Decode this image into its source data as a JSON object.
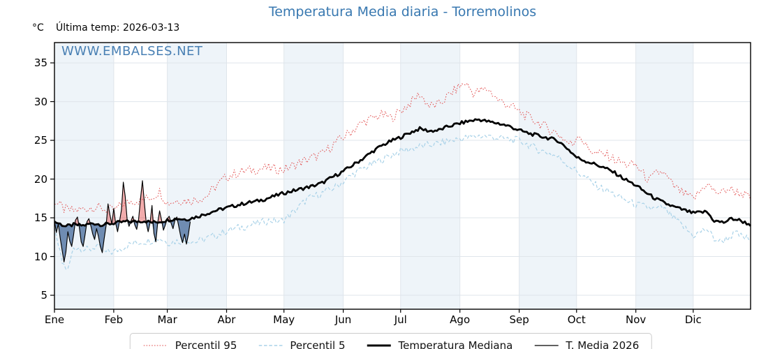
{
  "title": {
    "text": "Temperatura Media diaria - Torremolinos",
    "color": "#3878b0"
  },
  "header": {
    "unit_label": "°C",
    "last_temp_label": "Última temp: 2026-03-13"
  },
  "watermark": {
    "text": "WWW.EMBALSES.NET",
    "color": "#3a76ae"
  },
  "chart_data": {
    "type": "line",
    "x_axis": "days of year (daily temperature, °C)",
    "ylabel": "°C",
    "ylim": [
      3.2,
      37.62
    ],
    "y_ticks": [
      5,
      10,
      15,
      20,
      25,
      30,
      35
    ],
    "months": [
      {
        "label": "Ene",
        "days": 31
      },
      {
        "label": "Feb",
        "days": 28
      },
      {
        "label": "Mar",
        "days": 31
      },
      {
        "label": "Abr",
        "days": 30
      },
      {
        "label": "May",
        "days": 31
      },
      {
        "label": "Jun",
        "days": 30
      },
      {
        "label": "Jul",
        "days": 31
      },
      {
        "label": "Ago",
        "days": 31
      },
      {
        "label": "Sep",
        "days": 30
      },
      {
        "label": "Oct",
        "days": 31
      },
      {
        "label": "Nov",
        "days": 30
      },
      {
        "label": "Dic",
        "days": 31
      }
    ],
    "colors": {
      "band": "#eef4f9",
      "grid": "#dfe5eb",
      "spine": "#000000",
      "fill_above_median": "rgba(225,70,70,0.45)",
      "fill_below_median": "rgba(62,100,150,0.72)"
    },
    "legend_position": "bottom-center",
    "series": [
      {
        "name": "Percentil 95",
        "type": "anchors",
        "color": "#e14b4b",
        "dash": "1.6 2.2",
        "width": 1.0,
        "noise": 0.65,
        "seed": 7,
        "anchors": [
          [
            0,
            17.2
          ],
          [
            5,
            16.1
          ],
          [
            10,
            15.9
          ],
          [
            15,
            16.1
          ],
          [
            20,
            16.4
          ],
          [
            25,
            16.2
          ],
          [
            31,
            15.9
          ],
          [
            36,
            16.8
          ],
          [
            41,
            17.2
          ],
          [
            46,
            17.3
          ],
          [
            51,
            17.7
          ],
          [
            55,
            18.4
          ],
          [
            59,
            16.9
          ],
          [
            65,
            17.3
          ],
          [
            71,
            17.2
          ],
          [
            79,
            17.7
          ],
          [
            85,
            19.2
          ],
          [
            90,
            20.3
          ],
          [
            97,
            20.9
          ],
          [
            104,
            21.2
          ],
          [
            110,
            21.4
          ],
          [
            116,
            21.3
          ],
          [
            120,
            21.2
          ],
          [
            127,
            22.0
          ],
          [
            134,
            22.7
          ],
          [
            140,
            23.2
          ],
          [
            146,
            24.5
          ],
          [
            151,
            25.4
          ],
          [
            157,
            26.5
          ],
          [
            161,
            27.3
          ],
          [
            167,
            27.9
          ],
          [
            171,
            28.3
          ],
          [
            176,
            27.9
          ],
          [
            181,
            28.8
          ],
          [
            186,
            29.8
          ],
          [
            191,
            31.0
          ],
          [
            196,
            29.4
          ],
          [
            201,
            29.6
          ],
          [
            207,
            31.0
          ],
          [
            212,
            32.0
          ],
          [
            215,
            32.4
          ],
          [
            219,
            31.1
          ],
          [
            223,
            31.4
          ],
          [
            227,
            31.6
          ],
          [
            232,
            30.2
          ],
          [
            238,
            29.5
          ],
          [
            243,
            28.7
          ],
          [
            249,
            27.8
          ],
          [
            253,
            27.3
          ],
          [
            259,
            26.4
          ],
          [
            263,
            25.9
          ],
          [
            268,
            24.8
          ],
          [
            271,
            24.4
          ],
          [
            274,
            26.0
          ],
          [
            278,
            24.2
          ],
          [
            283,
            23.3
          ],
          [
            289,
            23.1
          ],
          [
            293,
            22.5
          ],
          [
            299,
            21.9
          ],
          [
            304,
            21.8
          ],
          [
            308,
            20.6
          ],
          [
            311,
            19.8
          ],
          [
            315,
            20.8
          ],
          [
            318,
            20.9
          ],
          [
            324,
            19.0
          ],
          [
            329,
            18.1
          ],
          [
            334,
            17.4
          ],
          [
            338,
            18.5
          ],
          [
            341,
            19.5
          ],
          [
            345,
            18.4
          ],
          [
            349,
            18.2
          ],
          [
            352,
            18.8
          ],
          [
            356,
            18.4
          ],
          [
            360,
            18.1
          ],
          [
            364,
            17.4
          ]
        ]
      },
      {
        "name": "Percentil 5",
        "type": "anchors",
        "color": "#a9d2e8",
        "dash": "4.5 2.8",
        "width": 1.2,
        "noise": 0.5,
        "seed": 13,
        "anchors": [
          [
            0,
            13.2
          ],
          [
            2,
            11.5
          ],
          [
            4,
            9.2
          ],
          [
            7,
            8.2
          ],
          [
            10,
            11.2
          ],
          [
            14,
            11.1
          ],
          [
            18,
            10.8
          ],
          [
            22,
            11.4
          ],
          [
            26,
            10.5
          ],
          [
            31,
            10.6
          ],
          [
            36,
            11.2
          ],
          [
            41,
            11.7
          ],
          [
            46,
            11.9
          ],
          [
            51,
            12.1
          ],
          [
            55,
            12.4
          ],
          [
            59,
            11.8
          ],
          [
            64,
            12.0
          ],
          [
            69,
            12.1
          ],
          [
            74,
            11.9
          ],
          [
            79,
            12.3
          ],
          [
            85,
            12.8
          ],
          [
            90,
            13.3
          ],
          [
            96,
            13.7
          ],
          [
            102,
            14.0
          ],
          [
            108,
            14.4
          ],
          [
            113,
            14.7
          ],
          [
            118,
            14.5
          ],
          [
            122,
            15.1
          ],
          [
            127,
            16.2
          ],
          [
            132,
            17.4
          ],
          [
            137,
            17.9
          ],
          [
            142,
            18.4
          ],
          [
            147,
            19.0
          ],
          [
            151,
            19.7
          ],
          [
            156,
            20.6
          ],
          [
            161,
            21.3
          ],
          [
            166,
            21.9
          ],
          [
            171,
            22.5
          ],
          [
            176,
            23.1
          ],
          [
            181,
            23.6
          ],
          [
            186,
            23.9
          ],
          [
            191,
            24.2
          ],
          [
            196,
            24.4
          ],
          [
            201,
            24.6
          ],
          [
            206,
            24.9
          ],
          [
            212,
            25.2
          ],
          [
            217,
            25.4
          ],
          [
            222,
            25.6
          ],
          [
            227,
            25.5
          ],
          [
            232,
            25.3
          ],
          [
            238,
            25.1
          ],
          [
            243,
            25.0
          ],
          [
            248,
            24.4
          ],
          [
            253,
            23.8
          ],
          [
            258,
            23.4
          ],
          [
            263,
            22.9
          ],
          [
            268,
            22.0
          ],
          [
            273,
            21.0
          ],
          [
            278,
            20.1
          ],
          [
            283,
            19.2
          ],
          [
            288,
            18.6
          ],
          [
            293,
            18.0
          ],
          [
            298,
            17.3
          ],
          [
            304,
            16.7
          ],
          [
            309,
            16.4
          ],
          [
            314,
            16.1
          ],
          [
            318,
            16.3
          ],
          [
            324,
            14.9
          ],
          [
            329,
            13.8
          ],
          [
            334,
            12.7
          ],
          [
            338,
            13.2
          ],
          [
            341,
            13.6
          ],
          [
            345,
            12.3
          ],
          [
            348,
            11.9
          ],
          [
            352,
            12.4
          ],
          [
            356,
            13.0
          ],
          [
            360,
            12.5
          ],
          [
            364,
            12.2
          ]
        ]
      },
      {
        "name": "Temperatura Mediana",
        "type": "anchors",
        "color": "#000000",
        "dash": "",
        "width": 2.8,
        "noise": 0.22,
        "seed": 3,
        "is_median": true,
        "anchors": [
          [
            0,
            14.5
          ],
          [
            6,
            13.9
          ],
          [
            10,
            14.1
          ],
          [
            15,
            14.0
          ],
          [
            20,
            14.3
          ],
          [
            25,
            14.1
          ],
          [
            31,
            14.3
          ],
          [
            37,
            14.5
          ],
          [
            41,
            14.5
          ],
          [
            47,
            14.6
          ],
          [
            51,
            14.4
          ],
          [
            55,
            14.5
          ],
          [
            59,
            14.7
          ],
          [
            64,
            14.9
          ],
          [
            69,
            14.8
          ],
          [
            74,
            15.1
          ],
          [
            79,
            15.5
          ],
          [
            84,
            15.9
          ],
          [
            90,
            16.3
          ],
          [
            95,
            16.6
          ],
          [
            100,
            16.9
          ],
          [
            105,
            17.1
          ],
          [
            110,
            17.4
          ],
          [
            115,
            17.8
          ],
          [
            120,
            18.2
          ],
          [
            125,
            18.5
          ],
          [
            130,
            18.8
          ],
          [
            135,
            19.1
          ],
          [
            140,
            19.5
          ],
          [
            145,
            20.2
          ],
          [
            151,
            21.0
          ],
          [
            156,
            21.8
          ],
          [
            161,
            22.6
          ],
          [
            166,
            23.5
          ],
          [
            171,
            24.3
          ],
          [
            176,
            24.9
          ],
          [
            181,
            25.4
          ],
          [
            186,
            26.0
          ],
          [
            191,
            26.5
          ],
          [
            196,
            26.2
          ],
          [
            201,
            26.3
          ],
          [
            206,
            26.8
          ],
          [
            212,
            27.2
          ],
          [
            217,
            27.5
          ],
          [
            222,
            27.7
          ],
          [
            227,
            27.4
          ],
          [
            232,
            27.2
          ],
          [
            238,
            26.8
          ],
          [
            243,
            26.3
          ],
          [
            248,
            25.9
          ],
          [
            253,
            25.6
          ],
          [
            258,
            25.3
          ],
          [
            263,
            25.0
          ],
          [
            268,
            24.0
          ],
          [
            273,
            22.8
          ],
          [
            278,
            22.3
          ],
          [
            283,
            21.9
          ],
          [
            288,
            21.4
          ],
          [
            293,
            20.8
          ],
          [
            298,
            20.0
          ],
          [
            304,
            19.2
          ],
          [
            309,
            18.3
          ],
          [
            314,
            17.5
          ],
          [
            319,
            16.9
          ],
          [
            324,
            16.4
          ],
          [
            329,
            16.0
          ],
          [
            334,
            15.6
          ],
          [
            338,
            15.7
          ],
          [
            341,
            15.8
          ],
          [
            345,
            14.6
          ],
          [
            350,
            14.4
          ],
          [
            354,
            14.9
          ],
          [
            358,
            14.7
          ],
          [
            361,
            14.4
          ],
          [
            364,
            14.1
          ]
        ]
      },
      {
        "name": "T. Media 2026",
        "type": "daily",
        "color": "#000000",
        "dash": "",
        "width": 1.15,
        "start_day": 0,
        "last_date": "2026-03-13",
        "values": [
          14.6,
          13.1,
          14.2,
          12.4,
          10.8,
          9.3,
          10.6,
          13.2,
          12.0,
          11.3,
          12.8,
          14.7,
          15.1,
          13.8,
          11.9,
          11.3,
          12.8,
          14.5,
          14.9,
          14.0,
          12.9,
          12.2,
          13.6,
          12.6,
          11.3,
          10.5,
          12.3,
          14.0,
          16.8,
          15.4,
          14.2,
          16.2,
          14.3,
          13.2,
          14.5,
          16.0,
          19.6,
          17.8,
          14.8,
          13.9,
          14.6,
          15.2,
          14.1,
          13.5,
          14.8,
          17.5,
          19.8,
          17.0,
          14.3,
          13.2,
          14.4,
          16.6,
          13.0,
          11.9,
          14.4,
          15.9,
          14.7,
          13.4,
          14.1,
          14.9,
          15.2,
          14.3,
          13.6,
          14.7,
          15.1,
          13.9,
          12.6,
          11.8,
          12.9,
          11.6,
          12.8,
          14.5
        ]
      }
    ]
  }
}
